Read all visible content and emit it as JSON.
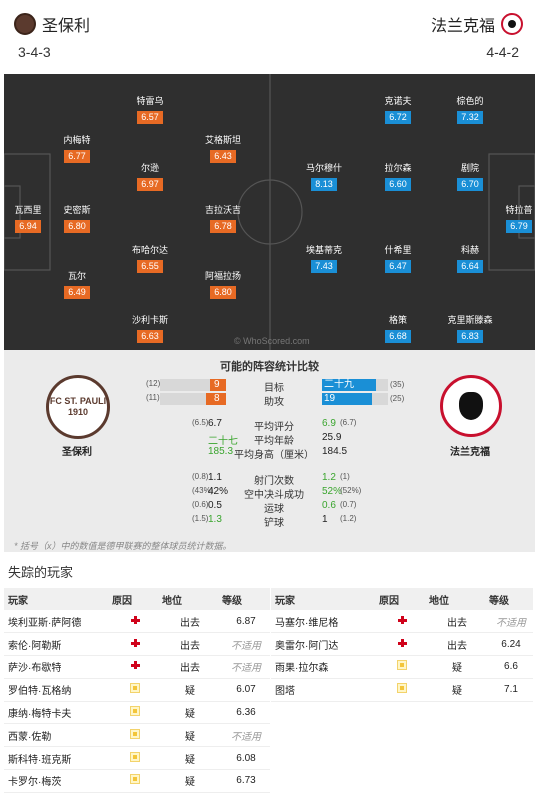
{
  "header": {
    "home_name": "圣保利",
    "away_name": "法兰克福",
    "home_formation": "3-4-3",
    "away_formation": "4-4-2"
  },
  "pitch": {
    "home_players": [
      {
        "name": "瓦西里",
        "rating": "6.94"
      },
      {
        "name": "内梅特",
        "rating": "6.77"
      },
      {
        "name": "史密斯",
        "rating": "6.80"
      },
      {
        "name": "瓦尔",
        "rating": "6.49"
      },
      {
        "name": "特雷乌",
        "rating": "6.57"
      },
      {
        "name": "尔逊",
        "rating": "6.97"
      },
      {
        "name": "布哈尔达",
        "rating": "6.55"
      },
      {
        "name": "沙利卡斯",
        "rating": "6.63"
      },
      {
        "name": "艾格斯坦",
        "rating": "6.43"
      },
      {
        "name": "吉拉沃吉",
        "rating": "6.78"
      },
      {
        "name": "阿福拉扬",
        "rating": "6.80"
      }
    ],
    "away_players": [
      {
        "name": "特拉普",
        "rating": "6.79"
      },
      {
        "name": "棕色的",
        "rating": "7.32"
      },
      {
        "name": "剧院",
        "rating": "6.70"
      },
      {
        "name": "科赫",
        "rating": "6.64"
      },
      {
        "name": "克里斯滕森",
        "rating": "6.83"
      },
      {
        "name": "克诺夫",
        "rating": "6.72"
      },
      {
        "name": "拉尔森",
        "rating": "6.60"
      },
      {
        "name": "什希里",
        "rating": "6.47"
      },
      {
        "name": "格策",
        "rating": "6.68"
      },
      {
        "name": "马尔穆什",
        "rating": "8.13"
      },
      {
        "name": "埃基蒂克",
        "rating": "7.43"
      }
    ],
    "watermark": "© WhoScored.com"
  },
  "compare": {
    "title": "可能的阵容统计比较",
    "home_label": "圣保利",
    "away_label": "法兰克福",
    "home_crest_text": "FC ST. PAULI 1910",
    "bars": [
      {
        "label": "目标",
        "home": "9",
        "home_paren": "(12)",
        "away": "二十九",
        "away_paren": "(35)",
        "home_frac": 0.24,
        "away_frac": 0.82
      },
      {
        "label": "助攻",
        "home": "8",
        "home_paren": "(11)",
        "away": "19",
        "away_paren": "(25)",
        "home_frac": 0.3,
        "away_frac": 0.76
      }
    ],
    "stats": [
      {
        "label": "平均评分",
        "home": "6.7",
        "home_paren": "(6.5)",
        "away": "6.9",
        "away_paren": "(6.7)",
        "away_green": true,
        "home_green": false
      },
      {
        "label": "平均年龄",
        "home": "二十七",
        "home_paren": "",
        "away": "25.9",
        "away_paren": "",
        "home_green": true,
        "away_green": false
      },
      {
        "label": "平均身高（厘米）",
        "home": "185.3",
        "home_paren": "",
        "away": "184.5",
        "away_paren": "",
        "home_green": true,
        "away_green": false
      },
      {
        "label": "射门次数",
        "home": "1.1",
        "home_paren": "(0.8)",
        "away": "1.2",
        "away_paren": "(1)",
        "away_green": true,
        "home_green": false
      },
      {
        "label": "空中决斗成功",
        "home": "42%",
        "home_paren": "(43%)",
        "away": "52%",
        "away_paren": "(52%)",
        "away_green": true,
        "home_green": false
      },
      {
        "label": "运球",
        "home": "0.5",
        "home_paren": "(0.6)",
        "away": "0.6",
        "away_paren": "(0.7)",
        "away_green": true,
        "home_green": false
      },
      {
        "label": "铲球",
        "home": "1.3",
        "home_paren": "(1.5)",
        "away": "1",
        "away_paren": "(1.2)",
        "home_green": true,
        "away_green": false
      }
    ],
    "footnote": "* 括号（x）中的数值是德甲联赛的整体球员统计数据。"
  },
  "missing": {
    "title": "失踪的玩家",
    "headers": {
      "player": "玩家",
      "reason": "原因",
      "position": "地位",
      "rating": "等级"
    },
    "home": [
      {
        "player": "埃利亚斯·萨阿德",
        "reason": "injury",
        "position": "出去",
        "rating": "6.87",
        "na": false
      },
      {
        "player": "索伦·阿勒斯",
        "reason": "injury",
        "position": "出去",
        "rating": "不适用",
        "na": true
      },
      {
        "player": "萨沙·布歇特",
        "reason": "injury",
        "position": "出去",
        "rating": "不适用",
        "na": true
      },
      {
        "player": "罗伯特·瓦格纳",
        "reason": "doubt",
        "position": "疑",
        "rating": "6.07",
        "na": false
      },
      {
        "player": "康纳·梅特卡夫",
        "reason": "doubt",
        "position": "疑",
        "rating": "6.36",
        "na": false
      },
      {
        "player": "西蒙·佐勒",
        "reason": "doubt",
        "position": "疑",
        "rating": "不适用",
        "na": true
      },
      {
        "player": "斯科特·班克斯",
        "reason": "doubt",
        "position": "疑",
        "rating": "6.08",
        "na": false
      },
      {
        "player": "卡罗尔·梅茨",
        "reason": "doubt",
        "position": "疑",
        "rating": "6.73",
        "na": false
      }
    ],
    "away": [
      {
        "player": "马塞尔·维尼格",
        "reason": "injury",
        "position": "出去",
        "rating": "不适用",
        "na": true
      },
      {
        "player": "奥雷尔·阿门达",
        "reason": "injury",
        "position": "出去",
        "rating": "6.24",
        "na": false
      },
      {
        "player": "雨果·拉尔森",
        "reason": "doubt",
        "position": "疑",
        "rating": "6.6",
        "na": false
      },
      {
        "player": "图塔",
        "reason": "doubt",
        "position": "疑",
        "rating": "7.1",
        "na": false
      }
    ]
  }
}
